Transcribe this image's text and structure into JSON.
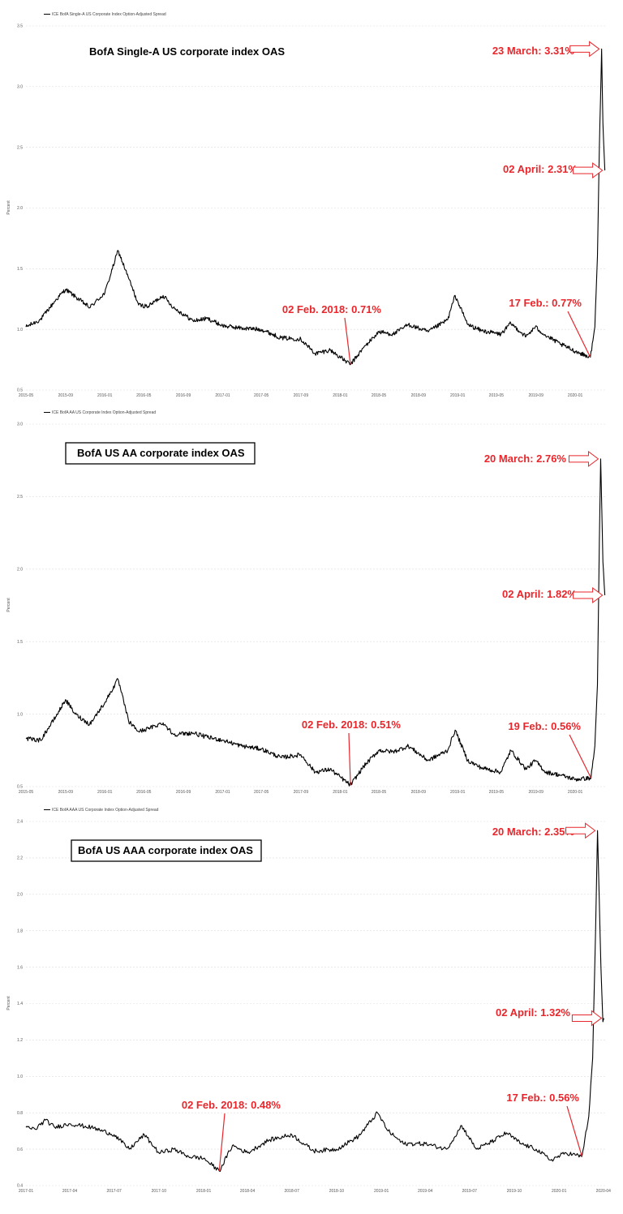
{
  "chart_data": [
    {
      "type": "line",
      "legend": "ICE BofA Single-A US Corporate Index Option-Adjusted Spread",
      "title": "BofA Single-A US corporate index OAS",
      "title_boxed": false,
      "ylabel": "Percent",
      "ylim": [
        0.5,
        3.5
      ],
      "yticks": [
        "0.5",
        "1.0",
        "1.5",
        "2.0",
        "2.5",
        "3.0",
        "3.5"
      ],
      "xlim": [
        "2015-05-01",
        "2020-04-08"
      ],
      "xticks": [
        "2015-05",
        "2015-09",
        "2016-01",
        "2016-05",
        "2016-09",
        "2017-01",
        "2017-05",
        "2017-09",
        "2018-01",
        "2018-05",
        "2018-09",
        "2019-01",
        "2019-05",
        "2019-09",
        "2020-01"
      ],
      "line_color": "#000000",
      "grid": "horizontal",
      "series": [
        {
          "x": [
            "2015-05-01",
            "2015-06-15",
            "2015-08-01",
            "2015-09-01",
            "2015-10-01",
            "2015-11-15",
            "2016-01-01",
            "2016-02-11",
            "2016-03-15",
            "2016-04-15",
            "2016-05-15",
            "2016-06-30",
            "2016-08-01",
            "2016-10-01",
            "2016-11-15",
            "2017-01-01",
            "2017-03-01",
            "2017-05-01",
            "2017-07-01",
            "2017-09-01",
            "2017-10-15",
            "2017-12-01",
            "2018-02-02",
            "2018-03-15",
            "2018-05-01",
            "2018-06-15",
            "2018-08-01",
            "2018-10-01",
            "2018-12-01",
            "2018-12-24",
            "2019-02-01",
            "2019-03-15",
            "2019-05-15",
            "2019-06-15",
            "2019-08-01",
            "2019-08-30",
            "2019-10-01",
            "2019-11-15",
            "2020-01-01",
            "2020-02-17",
            "2020-03-02",
            "2020-03-10",
            "2020-03-16",
            "2020-03-23",
            "2020-03-27",
            "2020-04-02"
          ],
          "y": [
            1.02,
            1.08,
            1.24,
            1.33,
            1.27,
            1.18,
            1.3,
            1.65,
            1.42,
            1.2,
            1.19,
            1.28,
            1.18,
            1.07,
            1.09,
            1.03,
            1.01,
            1.0,
            0.93,
            0.92,
            0.8,
            0.83,
            0.71,
            0.85,
            0.98,
            0.96,
            1.04,
            0.98,
            1.08,
            1.28,
            1.04,
            0.99,
            0.96,
            1.05,
            0.94,
            1.02,
            0.95,
            0.88,
            0.82,
            0.77,
            1.02,
            1.6,
            2.5,
            3.31,
            2.7,
            2.31
          ]
        }
      ],
      "annotations": [
        {
          "label": "23 March: 3.31%",
          "date": "2020-03-23",
          "value": 3.31,
          "style": "arrow"
        },
        {
          "label": "02 April: 2.31%",
          "date": "2020-04-02",
          "value": 2.31,
          "style": "arrow"
        },
        {
          "label": "02 Feb. 2018: 0.71%",
          "date": "2018-02-02",
          "value": 0.71,
          "style": "pointer"
        },
        {
          "label": "17 Feb.: 0.77%",
          "date": "2020-02-17",
          "value": 0.77,
          "style": "pointer"
        }
      ]
    },
    {
      "type": "line",
      "legend": "ICE BofA AA US Corporate Index Option-Adjusted Spread",
      "title": "BofA US AA corporate index OAS",
      "title_boxed": true,
      "ylabel": "Percent",
      "ylim": [
        0.5,
        3.0
      ],
      "yticks": [
        "0.5",
        "1.0",
        "1.5",
        "2.0",
        "2.5",
        "3.0"
      ],
      "xlim": [
        "2015-05-01",
        "2020-04-08"
      ],
      "xticks": [
        "2015-05",
        "2015-09",
        "2016-01",
        "2016-05",
        "2016-09",
        "2017-01",
        "2017-05",
        "2017-09",
        "2018-01",
        "2018-05",
        "2018-09",
        "2019-01",
        "2019-05",
        "2019-09",
        "2020-01"
      ],
      "line_color": "#000000",
      "grid": "horizontal",
      "series": [
        {
          "x": [
            "2015-05-01",
            "2015-06-15",
            "2015-08-01",
            "2015-09-01",
            "2015-10-01",
            "2015-11-15",
            "2016-01-01",
            "2016-02-11",
            "2016-03-15",
            "2016-04-15",
            "2016-05-15",
            "2016-06-30",
            "2016-08-01",
            "2016-10-01",
            "2016-11-15",
            "2017-01-01",
            "2017-03-01",
            "2017-05-01",
            "2017-07-01",
            "2017-09-01",
            "2017-10-15",
            "2017-12-01",
            "2018-02-02",
            "2018-03-15",
            "2018-05-01",
            "2018-06-15",
            "2018-08-01",
            "2018-10-01",
            "2018-12-01",
            "2018-12-24",
            "2019-02-01",
            "2019-03-15",
            "2019-05-15",
            "2019-06-15",
            "2019-08-01",
            "2019-08-30",
            "2019-10-01",
            "2019-11-15",
            "2020-01-01",
            "2020-02-19",
            "2020-03-02",
            "2020-03-10",
            "2020-03-16",
            "2020-03-20",
            "2020-03-27",
            "2020-04-02"
          ],
          "y": [
            0.83,
            0.82,
            0.98,
            1.1,
            1.0,
            0.93,
            1.08,
            1.24,
            0.95,
            0.88,
            0.9,
            0.94,
            0.86,
            0.87,
            0.84,
            0.82,
            0.78,
            0.76,
            0.7,
            0.72,
            0.6,
            0.62,
            0.51,
            0.64,
            0.75,
            0.74,
            0.78,
            0.68,
            0.75,
            0.89,
            0.68,
            0.63,
            0.6,
            0.75,
            0.62,
            0.68,
            0.6,
            0.58,
            0.55,
            0.56,
            0.78,
            1.2,
            2.2,
            2.76,
            2.05,
            1.82
          ]
        }
      ],
      "annotations": [
        {
          "label": "20 March: 2.76%",
          "date": "2020-03-20",
          "value": 2.76,
          "style": "arrow"
        },
        {
          "label": "02 April: 1.82%",
          "date": "2020-04-02",
          "value": 1.82,
          "style": "arrow"
        },
        {
          "label": "02 Feb. 2018: 0.51%",
          "date": "2018-02-02",
          "value": 0.51,
          "style": "pointer"
        },
        {
          "label": "19 Feb.: 0.56%",
          "date": "2020-02-19",
          "value": 0.56,
          "style": "pointer"
        }
      ]
    },
    {
      "type": "line",
      "legend": "ICE BofA AAA US Corporate Index Option-Adjusted Spread",
      "title": "BofA US AAA corporate index OAS",
      "title_boxed": true,
      "ylabel": "Percent",
      "ylim": [
        0.4,
        2.4
      ],
      "yticks": [
        "0.4",
        "0.6",
        "0.8",
        "1.0",
        "1.2",
        "1.4",
        "1.6",
        "1.8",
        "2.0",
        "2.2",
        "2.4"
      ],
      "xlim": [
        "2017-01-01",
        "2020-04-08"
      ],
      "xticks": [
        "2017-01",
        "2017-04",
        "2017-07",
        "2017-10",
        "2018-01",
        "2018-04",
        "2018-07",
        "2018-10",
        "2019-01",
        "2019-04",
        "2019-07",
        "2019-10",
        "2020-01",
        "2020-04"
      ],
      "line_color": "#000000",
      "grid": "horizontal",
      "series": [
        {
          "x": [
            "2017-01-01",
            "2017-01-20",
            "2017-02-10",
            "2017-03-01",
            "2017-04-01",
            "2017-05-15",
            "2017-07-01",
            "2017-08-01",
            "2017-09-01",
            "2017-10-01",
            "2017-11-01",
            "2017-12-01",
            "2018-01-01",
            "2018-02-02",
            "2018-03-01",
            "2018-04-01",
            "2018-05-15",
            "2018-07-01",
            "2018-08-15",
            "2018-10-01",
            "2018-11-15",
            "2018-12-24",
            "2019-01-15",
            "2019-02-15",
            "2019-04-01",
            "2019-05-15",
            "2019-06-15",
            "2019-07-15",
            "2019-08-15",
            "2019-09-15",
            "2019-10-15",
            "2019-11-15",
            "2019-12-15",
            "2020-01-15",
            "2020-02-17",
            "2020-03-02",
            "2020-03-10",
            "2020-03-16",
            "2020-03-20",
            "2020-03-27",
            "2020-03-31",
            "2020-04-02"
          ],
          "y": [
            0.72,
            0.71,
            0.76,
            0.72,
            0.74,
            0.72,
            0.68,
            0.6,
            0.68,
            0.58,
            0.6,
            0.56,
            0.55,
            0.48,
            0.62,
            0.58,
            0.65,
            0.68,
            0.59,
            0.6,
            0.67,
            0.8,
            0.7,
            0.63,
            0.63,
            0.6,
            0.73,
            0.6,
            0.64,
            0.69,
            0.63,
            0.6,
            0.54,
            0.58,
            0.56,
            0.78,
            1.1,
            1.8,
            2.35,
            1.6,
            1.3,
            1.32
          ]
        }
      ],
      "annotations": [
        {
          "label": "20 March: 2.35%",
          "date": "2020-03-20",
          "value": 2.35,
          "style": "arrow"
        },
        {
          "label": "02 April: 1.32%",
          "date": "2020-04-02",
          "value": 1.32,
          "style": "arrow"
        },
        {
          "label": "02 Feb. 2018: 0.48%",
          "date": "2018-02-02",
          "value": 0.48,
          "style": "pointer"
        },
        {
          "label": "17 Feb.: 0.56%",
          "date": "2020-02-17",
          "value": 0.56,
          "style": "pointer"
        }
      ]
    }
  ]
}
